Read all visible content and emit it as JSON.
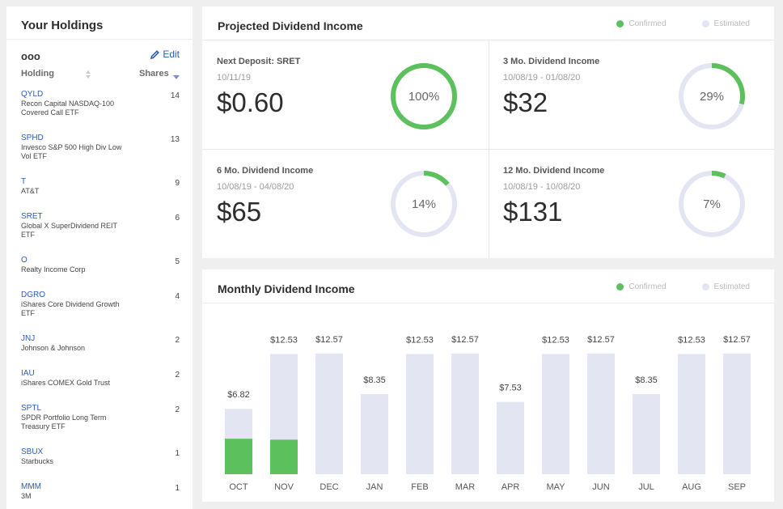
{
  "holdings": {
    "title": "Your Holdings",
    "account": "ooo",
    "edit_label": "Edit",
    "col_holding": "Holding",
    "col_shares": "Shares",
    "rows": [
      {
        "ticker": "QYLD",
        "name": "Recon Capital NASDAQ-100 Covered Call ETF",
        "shares": "14"
      },
      {
        "ticker": "SPHD",
        "name": "Invesco S&P 500 High Div Low Vol ETF",
        "shares": "13"
      },
      {
        "ticker": "T",
        "name": "AT&T",
        "shares": "9"
      },
      {
        "ticker": "SRET",
        "name": "Global X SuperDividend REIT ETF",
        "shares": "6"
      },
      {
        "ticker": "O",
        "name": "Realty Income Corp",
        "shares": "5"
      },
      {
        "ticker": "DGRO",
        "name": "iShares Core Dividend Growth ETF",
        "shares": "4"
      },
      {
        "ticker": "JNJ",
        "name": "Johnson & Johnson",
        "shares": "2"
      },
      {
        "ticker": "IAU",
        "name": "iShares COMEX Gold Trust",
        "shares": "2"
      },
      {
        "ticker": "SPTL",
        "name": "SPDR Portfolio Long Term Treasury ETF",
        "shares": "2"
      },
      {
        "ticker": "SBUX",
        "name": "Starbucks",
        "shares": "1"
      },
      {
        "ticker": "MMM",
        "name": "3M",
        "shares": "1"
      }
    ]
  },
  "projected": {
    "title": "Projected Dividend Income",
    "legend_confirmed": "Confirmed",
    "legend_estimated": "Estimated",
    "cards": [
      {
        "label": "Next Deposit: SRET",
        "dates": "10/11/19",
        "amount": "$0.60",
        "percent_label": "100%",
        "fraction": 1.0
      },
      {
        "label": "3 Mo. Dividend Income",
        "dates": "10/08/19 - 01/08/20",
        "amount": "$32",
        "percent_label": "29%",
        "fraction": 0.29
      },
      {
        "label": "6 Mo. Dividend Income",
        "dates": "10/08/19 - 04/08/20",
        "amount": "$65",
        "percent_label": "14%",
        "fraction": 0.14
      },
      {
        "label": "12 Mo. Dividend Income",
        "dates": "10/08/19 - 10/08/20",
        "amount": "$131",
        "percent_label": "7%",
        "fraction": 0.07
      }
    ]
  },
  "monthly": {
    "title": "Monthly Dividend Income",
    "legend_confirmed": "Confirmed",
    "legend_estimated": "Estimated"
  },
  "colors": {
    "confirmed": "#5cc15c",
    "estimated": "#e3e5f3",
    "link": "#2b5cb5"
  },
  "chart_data": {
    "type": "bar",
    "categories": [
      "OCT",
      "NOV",
      "DEC",
      "JAN",
      "FEB",
      "MAR",
      "APR",
      "MAY",
      "JUN",
      "JUL",
      "AUG",
      "SEP"
    ],
    "series": [
      {
        "name": "Confirmed",
        "values": [
          3.7,
          3.6,
          0,
          0,
          0,
          0,
          0,
          0,
          0,
          0,
          0,
          0
        ]
      },
      {
        "name": "Estimated",
        "values": [
          3.12,
          8.93,
          12.57,
          8.35,
          12.53,
          12.57,
          7.53,
          12.53,
          12.57,
          8.35,
          12.53,
          12.57
        ]
      }
    ],
    "totals": [
      6.82,
      12.53,
      12.57,
      8.35,
      12.53,
      12.57,
      7.53,
      12.53,
      12.57,
      8.35,
      12.53,
      12.57
    ],
    "labels": [
      "$6.82",
      "$12.53",
      "$12.57",
      "$8.35",
      "$12.53",
      "$12.57",
      "$7.53",
      "$12.53",
      "$12.57",
      "$8.35",
      "$12.53",
      "$12.57"
    ],
    "stacked": true,
    "ylim": [
      0,
      12.57
    ],
    "grid": false,
    "legend": "top-right"
  }
}
